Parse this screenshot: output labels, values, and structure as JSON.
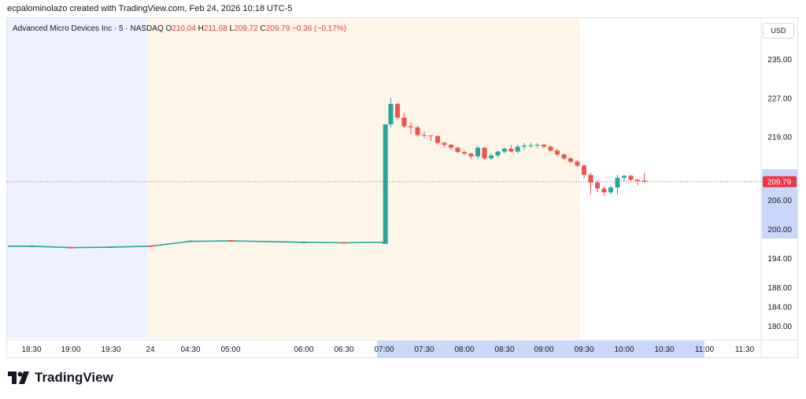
{
  "attribution": "ecpalominolazo created with TradingView.com, Feb 24, 2026 10:18 UTC-5",
  "legend": {
    "symbol": "Advanced Micro Devices Inc · 5 · NASDAQ",
    "o_label": "O",
    "o_value": "210.04",
    "h_label": "H",
    "h_value": "211.68",
    "l_label": "L",
    "l_value": "209.72",
    "c_label": "C",
    "c_value": "209.79",
    "change": "−0.36 (−0.17%)"
  },
  "currency": "USD",
  "last_price_label": "209.79",
  "footer_brand": "TradingView",
  "colors": {
    "up": "#26a69a",
    "down": "#ef5350",
    "pre_market_bg": "#fdf6e8",
    "post_market_bg": "#edf1ff",
    "axis_highlight": "#c9d7fb",
    "price_line": "#f23645"
  },
  "chart_data": {
    "type": "candlestick",
    "y_axis": {
      "ticks": [
        180,
        184,
        188,
        194,
        200,
        206,
        219,
        227,
        235
      ],
      "ylim": [
        177.5,
        243.5
      ]
    },
    "x_axis": {
      "tick_labels": [
        "18:30",
        "19:00",
        "19:30",
        "24",
        "04:30",
        "05:00",
        "06:00",
        "06:30",
        "07:00",
        "07:30",
        "08:00",
        "08:30",
        "09:00",
        "09:30",
        "10:00",
        "10:30",
        "11:00",
        "11:30"
      ]
    },
    "sessions": [
      {
        "name": "post-market",
        "from": "16:00",
        "to": "20:00"
      },
      {
        "name": "pre-market",
        "from": "04:00",
        "to": "09:30"
      }
    ],
    "last_price": 209.79,
    "early_series": {
      "x": [
        "18:30",
        "19:00",
        "19:30",
        "24",
        "04:30",
        "05:00",
        "06:00",
        "06:30"
      ],
      "close": [
        196.5,
        196.2,
        196.3,
        196.5,
        197.5,
        197.6,
        197.3,
        197.2
      ]
    },
    "candles": [
      {
        "t": "07:00",
        "o": 197.3,
        "h": 197.3,
        "l": 197.0,
        "c": 197.0
      },
      {
        "t": "07:01",
        "o": 197.0,
        "h": 221.6,
        "l": 197.0,
        "c": 221.6
      },
      {
        "t": "07:05",
        "o": 221.6,
        "h": 227.0,
        "l": 221.0,
        "c": 225.8
      },
      {
        "t": "07:10",
        "o": 225.8,
        "h": 226.0,
        "l": 222.6,
        "c": 223.0
      },
      {
        "t": "07:15",
        "o": 223.0,
        "h": 224.0,
        "l": 220.8,
        "c": 221.2
      },
      {
        "t": "07:20",
        "o": 221.2,
        "h": 222.0,
        "l": 219.6,
        "c": 221.0
      },
      {
        "t": "07:25",
        "o": 221.0,
        "h": 221.3,
        "l": 219.0,
        "c": 219.4
      },
      {
        "t": "07:30",
        "o": 219.4,
        "h": 220.2,
        "l": 218.8,
        "c": 219.3
      },
      {
        "t": "07:35",
        "o": 219.3,
        "h": 219.4,
        "l": 218.2,
        "c": 219.2
      },
      {
        "t": "07:40",
        "o": 219.2,
        "h": 219.3,
        "l": 217.4,
        "c": 217.8
      },
      {
        "t": "07:45",
        "o": 217.8,
        "h": 218.0,
        "l": 216.8,
        "c": 217.4
      },
      {
        "t": "07:50",
        "o": 217.4,
        "h": 217.6,
        "l": 216.3,
        "c": 216.8
      },
      {
        "t": "07:55",
        "o": 216.8,
        "h": 217.0,
        "l": 215.6,
        "c": 215.9
      },
      {
        "t": "08:00",
        "o": 215.9,
        "h": 216.2,
        "l": 215.3,
        "c": 215.6
      },
      {
        "t": "08:05",
        "o": 215.6,
        "h": 215.8,
        "l": 214.4,
        "c": 215.0
      },
      {
        "t": "08:10",
        "o": 215.0,
        "h": 217.2,
        "l": 214.4,
        "c": 216.8
      },
      {
        "t": "08:15",
        "o": 216.8,
        "h": 217.0,
        "l": 214.2,
        "c": 214.6
      },
      {
        "t": "08:20",
        "o": 214.6,
        "h": 215.6,
        "l": 214.2,
        "c": 215.2
      },
      {
        "t": "08:25",
        "o": 215.2,
        "h": 216.2,
        "l": 214.8,
        "c": 216.0
      },
      {
        "t": "08:30",
        "o": 216.0,
        "h": 216.8,
        "l": 215.6,
        "c": 216.6
      },
      {
        "t": "08:35",
        "o": 216.6,
        "h": 217.4,
        "l": 215.8,
        "c": 216.0
      },
      {
        "t": "08:40",
        "o": 216.0,
        "h": 217.4,
        "l": 215.6,
        "c": 217.0
      },
      {
        "t": "08:45",
        "o": 217.0,
        "h": 217.8,
        "l": 216.4,
        "c": 217.2
      },
      {
        "t": "08:50",
        "o": 217.2,
        "h": 217.8,
        "l": 216.8,
        "c": 217.3
      },
      {
        "t": "08:55",
        "o": 217.3,
        "h": 217.8,
        "l": 216.8,
        "c": 217.4
      },
      {
        "t": "09:00",
        "o": 217.4,
        "h": 217.6,
        "l": 216.6,
        "c": 217.0
      },
      {
        "t": "09:05",
        "o": 217.0,
        "h": 217.2,
        "l": 215.8,
        "c": 216.2
      },
      {
        "t": "09:10",
        "o": 216.2,
        "h": 216.6,
        "l": 215.0,
        "c": 215.4
      },
      {
        "t": "09:15",
        "o": 215.4,
        "h": 215.6,
        "l": 214.2,
        "c": 214.6
      },
      {
        "t": "09:20",
        "o": 214.6,
        "h": 214.8,
        "l": 213.6,
        "c": 213.9
      },
      {
        "t": "09:25",
        "o": 213.9,
        "h": 214.2,
        "l": 212.8,
        "c": 213.1
      },
      {
        "t": "09:30",
        "o": 213.1,
        "h": 213.4,
        "l": 210.4,
        "c": 211.2
      },
      {
        "t": "09:35",
        "o": 211.2,
        "h": 211.6,
        "l": 207.2,
        "c": 209.6
      },
      {
        "t": "09:40",
        "o": 209.6,
        "h": 210.2,
        "l": 207.6,
        "c": 208.4
      },
      {
        "t": "09:45",
        "o": 208.4,
        "h": 208.8,
        "l": 206.8,
        "c": 207.6
      },
      {
        "t": "09:50",
        "o": 207.6,
        "h": 209.0,
        "l": 207.2,
        "c": 208.6
      },
      {
        "t": "09:55",
        "o": 208.6,
        "h": 211.2,
        "l": 207.2,
        "c": 210.6
      },
      {
        "t": "10:00",
        "o": 210.6,
        "h": 211.2,
        "l": 209.8,
        "c": 211.0
      },
      {
        "t": "10:05",
        "o": 211.0,
        "h": 211.2,
        "l": 209.8,
        "c": 210.2
      },
      {
        "t": "10:10",
        "o": 210.2,
        "h": 210.4,
        "l": 209.0,
        "c": 209.9
      },
      {
        "t": "10:15",
        "o": 210.04,
        "h": 211.68,
        "l": 209.72,
        "c": 209.79
      }
    ]
  }
}
